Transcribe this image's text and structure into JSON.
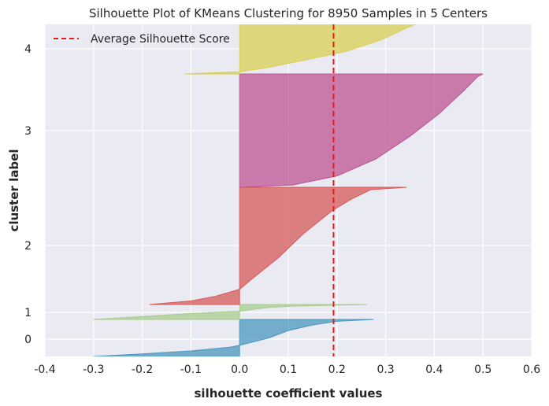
{
  "chart_data": {
    "type": "area",
    "title": "Silhouette Plot of KMeans Clustering for 8950 Samples in 5 Centers",
    "xlabel": "silhouette coefficient values",
    "ylabel": "cluster label",
    "xlim": [
      -0.4,
      0.6
    ],
    "x_ticks": [
      "-0.4",
      "-0.3",
      "-0.2",
      "-0.1",
      "0.0",
      "0.1",
      "0.2",
      "0.3",
      "0.4",
      "0.5",
      "0.6"
    ],
    "y_ticks": [
      "0",
      "1",
      "2",
      "3",
      "4"
    ],
    "grid": true,
    "legend_position": "top-left",
    "average_silhouette_score": 0.193,
    "average_line_label": "Average Silhouette Score",
    "average_line_color": "#e8191b",
    "background_color": "#eaeaf2",
    "clusters": [
      {
        "label": "0",
        "color": "#4c97bf",
        "min_value": -0.3,
        "max_value": 0.275,
        "profile": [
          [
            0,
            0.275
          ],
          [
            0.05,
            0.2
          ],
          [
            0.15,
            0.15
          ],
          [
            0.3,
            0.1
          ],
          [
            0.5,
            0.06
          ],
          [
            0.7,
            0.0
          ],
          [
            0.75,
            -0.02
          ],
          [
            0.85,
            -0.1
          ],
          [
            0.93,
            -0.2
          ],
          [
            1.0,
            -0.3
          ]
        ]
      },
      {
        "label": "1",
        "color": "#a8cc8c",
        "min_value": -0.3,
        "max_value": 0.262,
        "profile": [
          [
            0,
            0.262
          ],
          [
            0.1,
            0.12
          ],
          [
            0.2,
            0.06
          ],
          [
            0.45,
            0.0
          ],
          [
            0.6,
            -0.1
          ],
          [
            0.8,
            -0.2
          ],
          [
            1.0,
            -0.3
          ]
        ]
      },
      {
        "label": "2",
        "color": "#d65a58",
        "min_value": -0.185,
        "max_value": 0.343,
        "profile": [
          [
            0,
            0.343
          ],
          [
            0.02,
            0.27
          ],
          [
            0.1,
            0.23
          ],
          [
            0.2,
            0.19
          ],
          [
            0.4,
            0.13
          ],
          [
            0.6,
            0.08
          ],
          [
            0.8,
            0.02
          ],
          [
            0.87,
            0.0
          ],
          [
            0.93,
            -0.05
          ],
          [
            0.97,
            -0.1
          ],
          [
            1.0,
            -0.185
          ]
        ]
      },
      {
        "label": "3",
        "color": "#bd5492",
        "min_value": -0.001,
        "max_value": 0.5,
        "profile": [
          [
            0,
            0.5
          ],
          [
            0.02,
            0.49
          ],
          [
            0.15,
            0.46
          ],
          [
            0.35,
            0.41
          ],
          [
            0.55,
            0.35
          ],
          [
            0.75,
            0.28
          ],
          [
            0.9,
            0.2
          ],
          [
            0.98,
            0.11
          ],
          [
            1.0,
            0.0
          ]
        ]
      },
      {
        "label": "4",
        "color": "#d8cf53",
        "min_value": -0.113,
        "max_value": 0.395,
        "profile": [
          [
            0,
            0.395
          ],
          [
            0.2,
            0.34
          ],
          [
            0.4,
            0.29
          ],
          [
            0.6,
            0.22
          ],
          [
            0.78,
            0.12
          ],
          [
            0.9,
            0.05
          ],
          [
            0.96,
            0.0
          ],
          [
            1.0,
            -0.113
          ]
        ]
      }
    ]
  }
}
